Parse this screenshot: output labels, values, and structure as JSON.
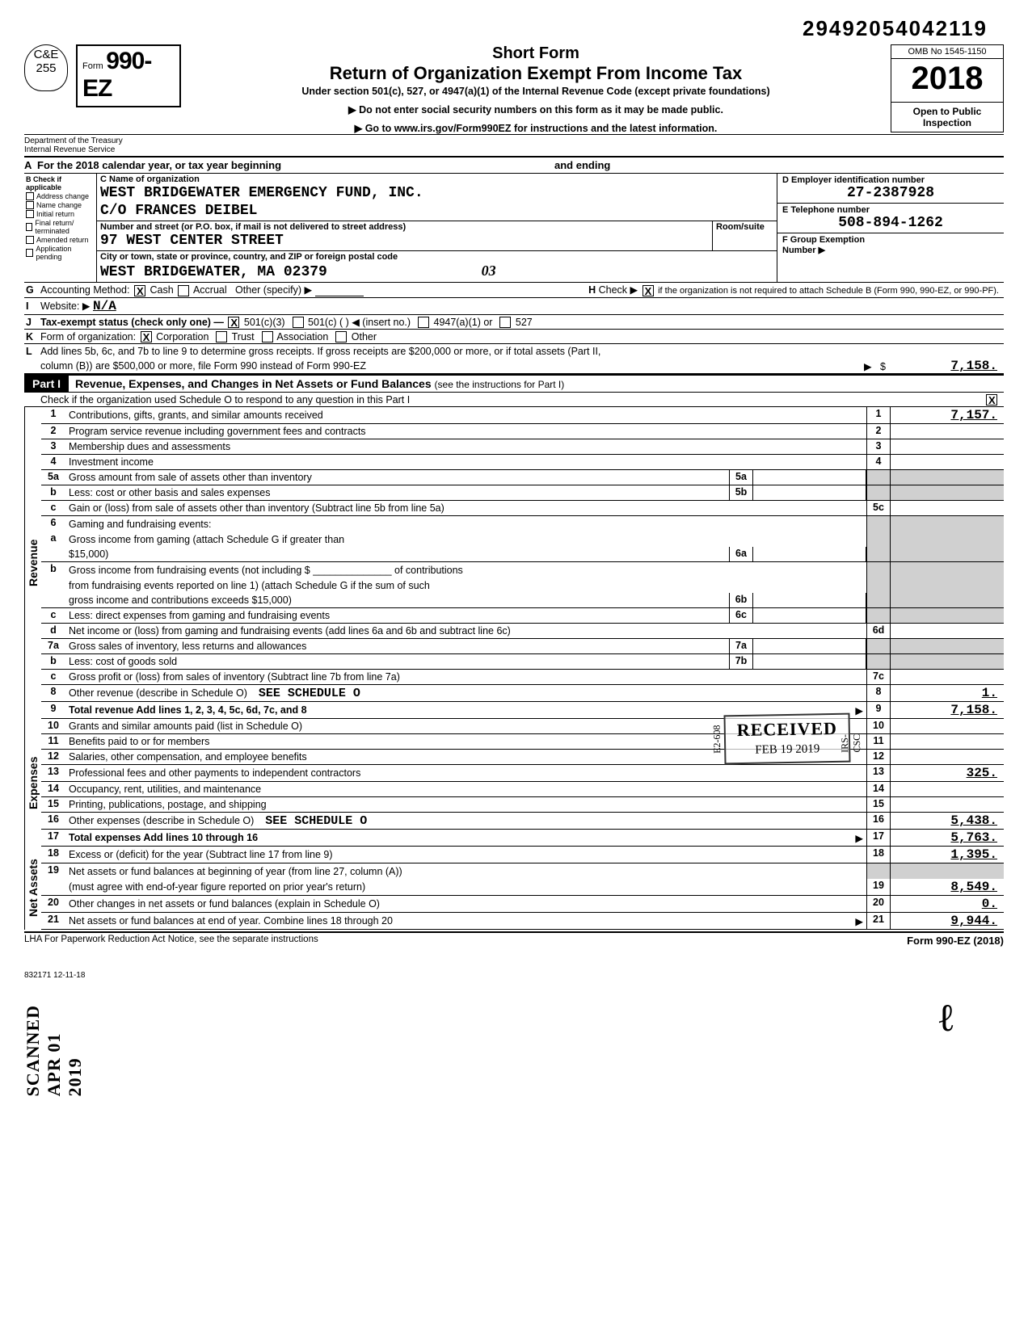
{
  "dln": "29492054042119",
  "corner_badge": {
    "line1": "C&E",
    "line2": "255"
  },
  "form_label": {
    "prefix": "Form",
    "number": "990-EZ"
  },
  "title": {
    "short": "Short Form",
    "main": "Return of Organization Exempt From Income Tax",
    "sub": "Under section 501(c), 527, or 4947(a)(1) of the Internal Revenue Code (except private foundations)",
    "arrow1": "Do not enter social security numbers on this form as it may be made public.",
    "arrow2": "Go to www.irs.gov/Form990EZ for instructions and the latest information."
  },
  "right_top": {
    "omb": "OMB No 1545-1150",
    "year": "2018",
    "open": "Open to Public Inspection"
  },
  "dept": {
    "l1": "Department of the Treasury",
    "l2": "Internal Revenue Service"
  },
  "tax_year_a": "For the 2018 calendar year, or tax year beginning",
  "tax_year_ending": "and ending",
  "col_b": {
    "head": "Check if applicable",
    "items": [
      "Address change",
      "Name change",
      "Initial return",
      "Final return/ terminated",
      "Amended return",
      "Application pending"
    ]
  },
  "col_c": {
    "name_label": "C Name of organization",
    "name": "WEST BRIDGEWATER EMERGENCY FUND, INC.",
    "care_of": "C/O FRANCES DEIBEL",
    "street_label": "Number and street (or P.O. box, if mail is not delivered to street address)",
    "room_label": "Room/suite",
    "street": "97 WEST CENTER STREET",
    "city_label": "City or town, state or province, country, and ZIP or foreign postal code",
    "city": "WEST BRIDGEWATER, MA  02379",
    "hand_note": "03"
  },
  "col_d": {
    "ein_label": "D Employer identification number",
    "ein": "27-2387928",
    "phone_label": "E  Telephone number",
    "phone": "508-894-1262",
    "group_label": "F  Group Exemption",
    "group_sub": "Number ▶"
  },
  "lines": {
    "G": "Accounting Method:",
    "G_opts": [
      "Cash",
      "Accrual",
      "Other (specify) ▶"
    ],
    "H": "Check ▶",
    "H_tail": "if the organization is not required to attach Schedule B (Form 990, 990-EZ, or 990-PF).",
    "I": "Website: ▶",
    "I_val": "N/A",
    "J": "Tax-exempt status (check only one) —",
    "J_opts": [
      "501(c)(3)",
      "501(c) (        ) ◀ (insert no.)",
      "4947(a)(1) or",
      "527"
    ],
    "K": "Form of organization:",
    "K_opts": [
      "Corporation",
      "Trust",
      "Association",
      "Other"
    ],
    "L1": "Add lines 5b, 6c, and 7b to line 9 to determine gross receipts. If gross receipts are $200,000 or more, or if total assets (Part II,",
    "L2": "column (B)) are $500,000 or more, file Form 990 instead of Form 990-EZ",
    "L_val": "7,158."
  },
  "part1": {
    "label": "Part I",
    "title": "Revenue, Expenses, and Changes in Net Assets or Fund Balances",
    "title_light": "(see the instructions for Part I)",
    "check_line": "Check if the organization used Schedule O to respond to any question in this Part I"
  },
  "side_labels": {
    "revenue": "Revenue",
    "expenses": "Expenses",
    "netassets": "Net Assets"
  },
  "scanned_stamp": "SCANNED APR 01 2019",
  "rows": [
    {
      "n": "1",
      "d": "Contributions, gifts, grants, and similar amounts received",
      "rn": "1",
      "rv": "7,157."
    },
    {
      "n": "2",
      "d": "Program service revenue including government fees and contracts",
      "rn": "2",
      "rv": ""
    },
    {
      "n": "3",
      "d": "Membership dues and assessments",
      "rn": "3",
      "rv": ""
    },
    {
      "n": "4",
      "d": "Investment income",
      "rn": "4",
      "rv": ""
    },
    {
      "n": "5a",
      "d": "Gross amount from sale of assets other than inventory",
      "mn": "5a",
      "mv": "",
      "rn": "",
      "rv": "",
      "shade": true
    },
    {
      "n": "b",
      "d": "Less: cost or other basis and sales expenses",
      "mn": "5b",
      "mv": "",
      "rn": "",
      "rv": "",
      "shade": true
    },
    {
      "n": "c",
      "d": "Gain or (loss) from sale of assets other than inventory (Subtract line 5b from line 5a)",
      "rn": "5c",
      "rv": ""
    },
    {
      "n": "6",
      "d": "Gaming and fundraising events:",
      "rn": "",
      "rv": "",
      "shade": true,
      "noborder": true
    },
    {
      "n": "a",
      "d": "Gross income from gaming (attach Schedule G if greater than",
      "rn": "",
      "rv": "",
      "shade": true,
      "noborder": true
    },
    {
      "n": "",
      "d": "$15,000)",
      "mn": "6a",
      "mv": "",
      "rn": "",
      "rv": "",
      "shade": true
    },
    {
      "n": "b",
      "d": "Gross income from fundraising events (not including $ ______________ of contributions",
      "rn": "",
      "rv": "",
      "shade": true,
      "noborder": true
    },
    {
      "n": "",
      "d": "from fundraising events reported on line 1) (attach Schedule G if the sum of such",
      "rn": "",
      "rv": "",
      "shade": true,
      "noborder": true
    },
    {
      "n": "",
      "d": "gross income and contributions exceeds $15,000)",
      "mn": "6b",
      "mv": "",
      "rn": "",
      "rv": "",
      "shade": true
    },
    {
      "n": "c",
      "d": "Less: direct expenses from gaming and fundraising events",
      "mn": "6c",
      "mv": "",
      "rn": "",
      "rv": "",
      "shade": true
    },
    {
      "n": "d",
      "d": "Net income or (loss) from gaming and fundraising events (add lines 6a and 6b and subtract line 6c)",
      "rn": "6d",
      "rv": ""
    },
    {
      "n": "7a",
      "d": "Gross sales of inventory, less returns and allowances",
      "mn": "7a",
      "mv": "",
      "rn": "",
      "rv": "",
      "shade": true
    },
    {
      "n": "b",
      "d": "Less: cost of goods sold",
      "mn": "7b",
      "mv": "",
      "rn": "",
      "rv": "",
      "shade": true
    },
    {
      "n": "c",
      "d": "Gross profit or (loss) from sales of inventory (Subtract line 7b from line 7a)",
      "rn": "7c",
      "rv": ""
    },
    {
      "n": "8",
      "d": "Other revenue (describe in Schedule O)",
      "extra": "SEE SCHEDULE O",
      "rn": "8",
      "rv": "1."
    },
    {
      "n": "9",
      "d": "Total revenue  Add lines 1, 2, 3, 4, 5c, 6d, 7c, and 8",
      "arrow": true,
      "rn": "9",
      "rv": "7,158.",
      "bold": true
    },
    {
      "n": "10",
      "d": "Grants and similar amounts paid (list in Schedule O)",
      "rn": "10",
      "rv": ""
    },
    {
      "n": "11",
      "d": "Benefits paid to or for members",
      "rn": "11",
      "rv": ""
    },
    {
      "n": "12",
      "d": "Salaries, other compensation, and employee benefits",
      "rn": "12",
      "rv": ""
    },
    {
      "n": "13",
      "d": "Professional fees and other payments to independent contractors",
      "rn": "13",
      "rv": "325."
    },
    {
      "n": "14",
      "d": "Occupancy, rent, utilities, and maintenance",
      "rn": "14",
      "rv": ""
    },
    {
      "n": "15",
      "d": "Printing, publications, postage, and shipping",
      "rn": "15",
      "rv": ""
    },
    {
      "n": "16",
      "d": "Other expenses (describe in Schedule O)",
      "extra": "SEE SCHEDULE O",
      "rn": "16",
      "rv": "5,438."
    },
    {
      "n": "17",
      "d": "Total expenses  Add lines 10 through 16",
      "arrow": true,
      "rn": "17",
      "rv": "5,763.",
      "bold": true
    },
    {
      "n": "18",
      "d": "Excess or (deficit) for the year (Subtract line 17 from line 9)",
      "rn": "18",
      "rv": "1,395."
    },
    {
      "n": "19",
      "d": "Net assets or fund balances at beginning of year (from line 27, column (A))",
      "rn": "",
      "rv": "",
      "shade": true,
      "noborder": true
    },
    {
      "n": "",
      "d": "(must agree with end-of-year figure reported on prior year's return)",
      "rn": "19",
      "rv": "8,549."
    },
    {
      "n": "20",
      "d": "Other changes in net assets or fund balances (explain in Schedule O)",
      "rn": "20",
      "rv": "0."
    },
    {
      "n": "21",
      "d": "Net assets or fund balances at end of year. Combine lines 18 through 20",
      "arrow": true,
      "rn": "21",
      "rv": "9,944."
    }
  ],
  "received": {
    "title": "RECEIVED",
    "date": "FEB 19 2019",
    "side_l": "E2-608",
    "side_r": "IRS-CSC"
  },
  "footer": {
    "left": "LHA  For Paperwork Reduction Act Notice, see the separate instructions",
    "right": "Form 990-EZ (2018)"
  },
  "bottom_code": "832171  12-11-18",
  "colors": {
    "ink": "#000000",
    "shade": "#d0d0d0"
  }
}
